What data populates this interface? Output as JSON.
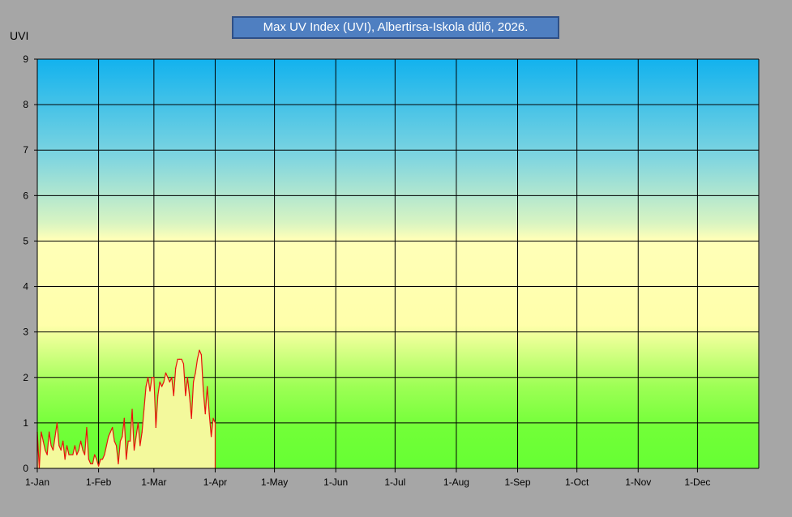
{
  "chart_data": {
    "type": "area",
    "title": "Max UV Index (UVI), Albertirsa-Iskola dűlő, 2026.",
    "ylabel": "UVI",
    "xlabel": "",
    "ylim": [
      0,
      9
    ],
    "yticks": [
      "0",
      "1",
      "2",
      "3",
      "4",
      "5",
      "6",
      "7",
      "8",
      "9"
    ],
    "x_range_days": [
      0,
      365
    ],
    "xticks": [
      {
        "day": 0,
        "label": "1-Jan"
      },
      {
        "day": 31,
        "label": "1-Feb"
      },
      {
        "day": 59,
        "label": "1-Mar"
      },
      {
        "day": 90,
        "label": "1-Apr"
      },
      {
        "day": 120,
        "label": "1-May"
      },
      {
        "day": 151,
        "label": "1-Jun"
      },
      {
        "day": 181,
        "label": "1-Jul"
      },
      {
        "day": 212,
        "label": "1-Aug"
      },
      {
        "day": 243,
        "label": "1-Sep"
      },
      {
        "day": 273,
        "label": "1-Oct"
      },
      {
        "day": 304,
        "label": "1-Nov"
      },
      {
        "day": 334,
        "label": "1-Dec"
      }
    ],
    "grid": true,
    "line_color": "#e8120c",
    "fill_color": "#f3f99c",
    "series": [
      {
        "values": [
          0.8,
          0.0,
          0.8,
          0.6,
          0.4,
          0.3,
          0.8,
          0.5,
          0.4,
          0.7,
          1.0,
          0.5,
          0.4,
          0.6,
          0.2,
          0.5,
          0.3,
          0.3,
          0.3,
          0.5,
          0.3,
          0.4,
          0.6,
          0.4,
          0.3,
          0.9,
          0.2,
          0.1,
          0.1,
          0.3,
          0.2,
          0.05,
          0.2,
          0.2,
          0.3,
          0.5,
          0.7,
          0.8,
          0.9,
          0.6,
          0.5,
          0.1,
          0.6,
          0.7,
          1.1,
          0.2,
          0.6,
          0.6,
          1.3,
          0.4,
          0.7,
          1.0,
          0.5,
          0.8,
          1.3,
          1.8,
          2.0,
          1.7,
          2.0,
          2.0,
          0.9,
          1.6,
          1.9,
          1.8,
          1.9,
          2.1,
          2.0,
          1.9,
          2.0,
          1.6,
          2.2,
          2.4,
          2.4,
          2.4,
          2.3,
          1.6,
          2.0,
          1.6,
          1.1,
          1.9,
          2.1,
          2.4,
          2.6,
          2.5,
          1.7,
          1.2,
          1.8,
          1.2,
          0.7,
          1.1,
          1.0
        ]
      }
    ]
  }
}
